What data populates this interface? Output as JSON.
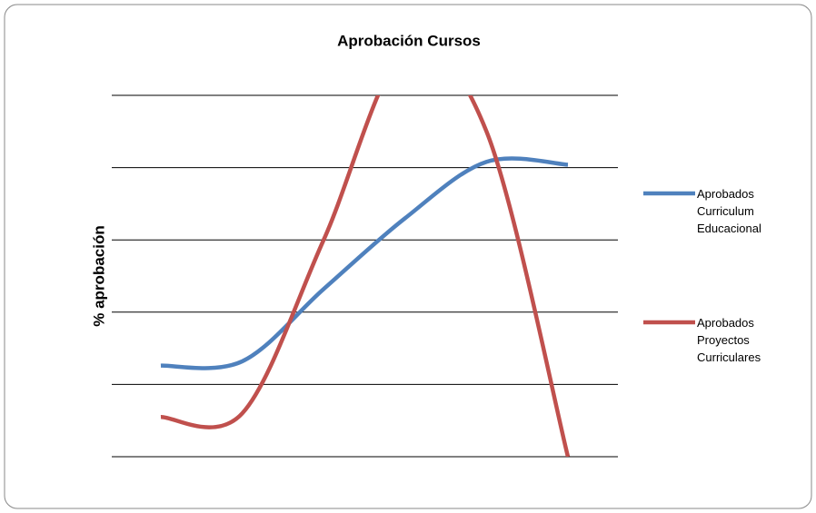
{
  "chart_data": {
    "type": "line",
    "title": "Aprobación Cursos",
    "y_label": "% aprobación",
    "series": [
      {
        "name": "Aprobados Curriculum Educacional",
        "color": "#4f81bd",
        "values": [
          1.26,
          1.32,
          2.32,
          3.3,
          4.08,
          4.04
        ]
      },
      {
        "name": "Aprobados Proyectos Curriculares",
        "color": "#c0504d",
        "values": [
          0.55,
          0.6,
          3.0,
          5.6,
          4.5,
          0
        ]
      }
    ],
    "ylim": [
      0,
      5
    ],
    "yticks": [
      0,
      1,
      2,
      3,
      4,
      5
    ],
    "grid": true,
    "smooth": true,
    "legend": "right"
  }
}
